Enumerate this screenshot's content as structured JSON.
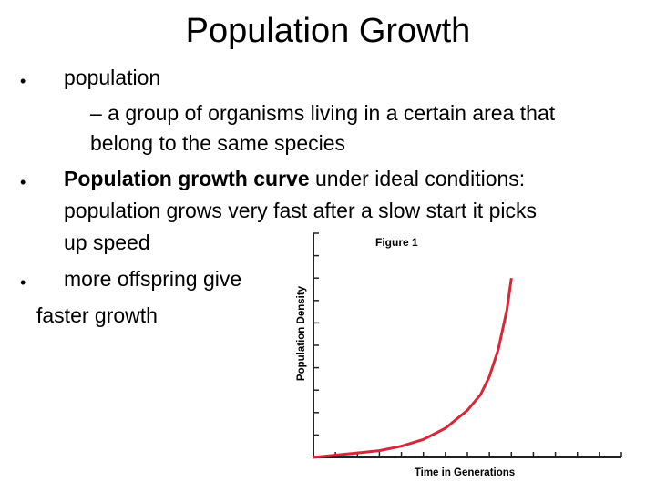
{
  "slide": {
    "title": "Population Growth",
    "bullets": [
      {
        "text": "population"
      },
      {
        "sub": "– a group of organisms living in a certain area that",
        "sub_cont": "belong to the same species"
      },
      {
        "bold": "Population growth curve",
        "rest": " under ideal conditions:",
        "cont1": "population grows very fast after a slow start it picks",
        "cont2": "up speed"
      },
      {
        "text": "more offspring give",
        "cont": "faster growth"
      }
    ]
  },
  "chart_data": {
    "type": "line",
    "title": "Figure 1",
    "xlabel": "Time in Generations",
    "ylabel": "Population Density",
    "grid": false,
    "series": [
      {
        "color": "#d62839",
        "x": [
          0,
          5,
          10,
          15,
          20,
          25,
          30,
          35,
          38,
          40,
          42,
          44,
          45
        ],
        "y": [
          0,
          1,
          2,
          3,
          5,
          8,
          13,
          21,
          28,
          36,
          48,
          66,
          80
        ]
      }
    ],
    "xlim": [
      0,
      70
    ],
    "ylim": [
      0,
      100
    ]
  }
}
